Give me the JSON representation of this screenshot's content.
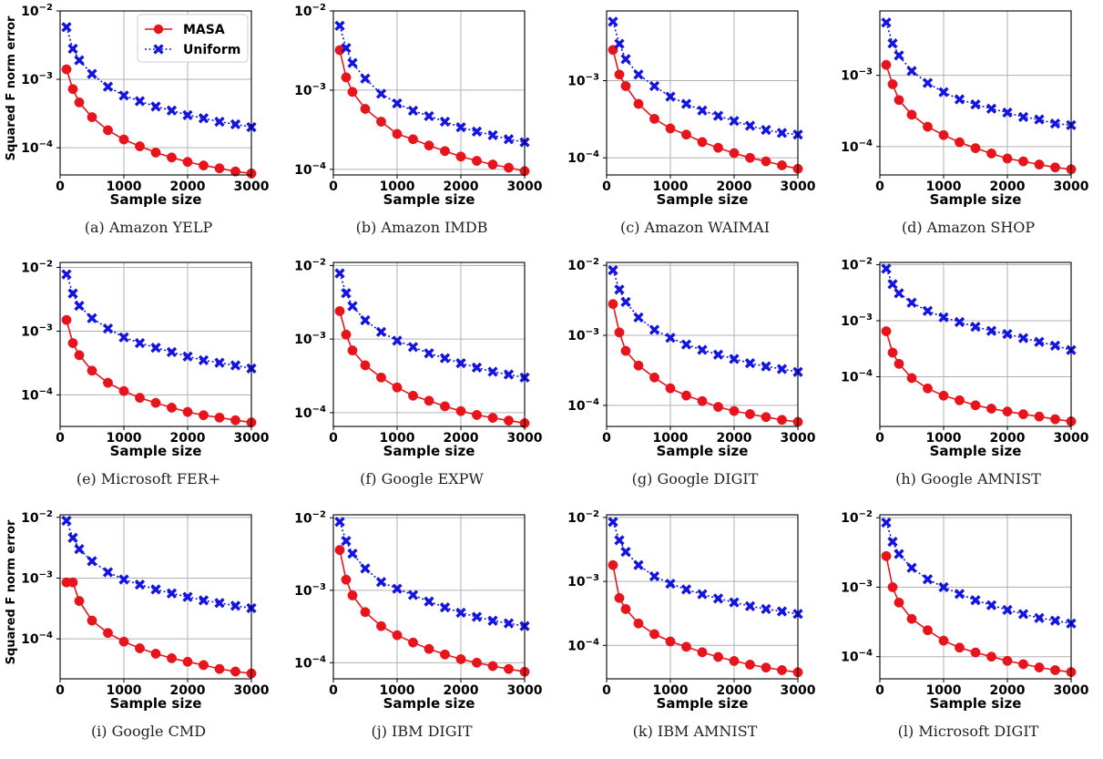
{
  "figure": {
    "ylabel": "Squared F norm error",
    "xlabel": "Sample size"
  },
  "legend": {
    "series": [
      "MASA",
      "Uniform"
    ],
    "position": "top-right of panel (a)"
  },
  "colors": {
    "masa": "#e8141c",
    "uniform": "#1414e0",
    "grid": "#b0b0b0"
  },
  "chart_data": [
    {
      "type": "line",
      "caption": "(a)  Amazon YELP",
      "xlabel": "Sample size",
      "ylabel": "Squared F norm error",
      "yscale": "log",
      "ylim": [
        4e-05,
        0.01
      ],
      "xlim": [
        0,
        3000
      ],
      "grid": true,
      "x": [
        100,
        200,
        300,
        500,
        750,
        1000,
        1250,
        1500,
        1750,
        2000,
        2250,
        2500,
        2750,
        3000
      ],
      "series": [
        {
          "name": "MASA",
          "values": [
            0.0014,
            0.00072,
            0.00046,
            0.00028,
            0.00018,
            0.000132,
            0.000105,
            8.5e-05,
            7.2e-05,
            6.2e-05,
            5.5e-05,
            5e-05,
            4.5e-05,
            4.2e-05
          ]
        },
        {
          "name": "Uniform",
          "values": [
            0.0058,
            0.0028,
            0.0019,
            0.0012,
            0.00078,
            0.00058,
            0.00048,
            0.0004,
            0.00035,
            0.0003,
            0.00027,
            0.00024,
            0.00022,
            0.0002
          ]
        }
      ]
    },
    {
      "type": "line",
      "caption": "(b)  Amazon IMDB",
      "xlabel": "Sample size",
      "yscale": "log",
      "ylim": [
        8.5e-05,
        0.01
      ],
      "xlim": [
        0,
        3000
      ],
      "grid": true,
      "x": [
        100,
        200,
        300,
        500,
        750,
        1000,
        1250,
        1500,
        1750,
        2000,
        2250,
        2500,
        2750,
        3000
      ],
      "series": [
        {
          "name": "MASA",
          "values": [
            0.0032,
            0.00145,
            0.00095,
            0.00058,
            0.0004,
            0.00028,
            0.00024,
            0.0002,
            0.00017,
            0.000145,
            0.000128,
            0.000115,
            0.000105,
            9.5e-05
          ]
        },
        {
          "name": "Uniform",
          "values": [
            0.0065,
            0.0034,
            0.0022,
            0.0014,
            0.0009,
            0.00068,
            0.00055,
            0.00047,
            0.0004,
            0.00034,
            0.0003,
            0.00027,
            0.00024,
            0.00022
          ]
        }
      ]
    },
    {
      "type": "line",
      "caption": "(c)  Amazon WAIMAI",
      "xlabel": "Sample size",
      "yscale": "log",
      "ylim": [
        6e-05,
        0.008
      ],
      "xlim": [
        0,
        3000
      ],
      "grid": true,
      "x": [
        100,
        200,
        300,
        500,
        750,
        1000,
        1250,
        1500,
        1750,
        2000,
        2250,
        2500,
        2750,
        3000
      ],
      "series": [
        {
          "name": "MASA",
          "values": [
            0.0025,
            0.0012,
            0.00085,
            0.0005,
            0.00032,
            0.00024,
            0.0002,
            0.00016,
            0.000135,
            0.000115,
            0.0001,
            9e-05,
            8e-05,
            7.2e-05
          ]
        },
        {
          "name": "Uniform",
          "values": [
            0.0058,
            0.003,
            0.0019,
            0.0012,
            0.00085,
            0.00062,
            0.0005,
            0.00041,
            0.00035,
            0.0003,
            0.00026,
            0.00023,
            0.00021,
            0.0002
          ]
        }
      ]
    },
    {
      "type": "line",
      "caption": "(d)  Amazon SHOP",
      "xlabel": "Sample size",
      "yscale": "log",
      "ylim": [
        4e-05,
        0.008
      ],
      "xlim": [
        0,
        3000
      ],
      "grid": true,
      "x": [
        100,
        200,
        300,
        500,
        750,
        1000,
        1250,
        1500,
        1750,
        2000,
        2250,
        2500,
        2750,
        3000
      ],
      "series": [
        {
          "name": "MASA",
          "values": [
            0.0014,
            0.00075,
            0.00045,
            0.00028,
            0.00019,
            0.000145,
            0.000115,
            9.5e-05,
            8e-05,
            6.8e-05,
            6.2e-05,
            5.6e-05,
            5.1e-05,
            4.8e-05
          ]
        },
        {
          "name": "Uniform",
          "values": [
            0.0055,
            0.0028,
            0.0019,
            0.00115,
            0.00078,
            0.00058,
            0.00046,
            0.00039,
            0.00034,
            0.0003,
            0.00026,
            0.00024,
            0.00021,
            0.0002
          ]
        }
      ]
    },
    {
      "type": "line",
      "caption": "(e)  Microsoft FER+",
      "xlabel": "Sample size",
      "yscale": "log",
      "ylim": [
        3.2e-05,
        0.012
      ],
      "xlim": [
        0,
        3000
      ],
      "grid": true,
      "x": [
        100,
        200,
        300,
        500,
        750,
        1000,
        1250,
        1500,
        1750,
        2000,
        2250,
        2500,
        2750,
        3000
      ],
      "series": [
        {
          "name": "MASA",
          "values": [
            0.0015,
            0.00065,
            0.00042,
            0.00024,
            0.000155,
            0.000115,
            9e-05,
            7.5e-05,
            6.3e-05,
            5.4e-05,
            4.8e-05,
            4.4e-05,
            4e-05,
            3.7e-05
          ]
        },
        {
          "name": "Uniform",
          "values": [
            0.0078,
            0.0039,
            0.0025,
            0.0016,
            0.0011,
            0.0008,
            0.00065,
            0.00055,
            0.00047,
            0.0004,
            0.00035,
            0.00032,
            0.00029,
            0.00026
          ]
        }
      ]
    },
    {
      "type": "line",
      "caption": "(f)  Google EXPW",
      "xlabel": "Sample size",
      "yscale": "log",
      "ylim": [
        6.5e-05,
        0.011
      ],
      "xlim": [
        0,
        3000
      ],
      "grid": true,
      "x": [
        100,
        200,
        300,
        500,
        750,
        1000,
        1250,
        1500,
        1750,
        2000,
        2250,
        2500,
        2750,
        3000
      ],
      "series": [
        {
          "name": "MASA",
          "values": [
            0.0024,
            0.00115,
            0.0007,
            0.00044,
            0.0003,
            0.00022,
            0.00017,
            0.000145,
            0.000122,
            0.000105,
            9.3e-05,
            8.5e-05,
            7.8e-05,
            7.2e-05
          ]
        },
        {
          "name": "Uniform",
          "values": [
            0.0078,
            0.0042,
            0.0028,
            0.0018,
            0.00125,
            0.00095,
            0.00078,
            0.00064,
            0.00055,
            0.00047,
            0.00041,
            0.00036,
            0.00033,
            0.0003
          ]
        }
      ]
    },
    {
      "type": "line",
      "caption": "(g)  Google DIGIT",
      "xlabel": "Sample size",
      "yscale": "log",
      "ylim": [
        5e-05,
        0.011
      ],
      "xlim": [
        0,
        3000
      ],
      "grid": true,
      "x": [
        100,
        200,
        300,
        500,
        750,
        1000,
        1250,
        1500,
        1750,
        2000,
        2250,
        2500,
        2750,
        3000
      ],
      "series": [
        {
          "name": "MASA",
          "values": [
            0.0028,
            0.0011,
            0.0006,
            0.00037,
            0.00025,
            0.000175,
            0.000138,
            0.000115,
            9.5e-05,
            8.3e-05,
            7.5e-05,
            6.8e-05,
            6.2e-05,
            5.8e-05
          ]
        },
        {
          "name": "Uniform",
          "values": [
            0.0085,
            0.0045,
            0.003,
            0.0018,
            0.0012,
            0.00092,
            0.00074,
            0.00062,
            0.00053,
            0.00046,
            0.0004,
            0.00036,
            0.00033,
            0.0003
          ]
        }
      ]
    },
    {
      "type": "line",
      "caption": "(h)  Google AMNIST",
      "xlabel": "Sample size",
      "yscale": "log",
      "ylim": [
        1.3e-05,
        0.011
      ],
      "xlim": [
        0,
        3000
      ],
      "grid": true,
      "x": [
        100,
        200,
        300,
        500,
        750,
        1000,
        1250,
        1500,
        1750,
        2000,
        2250,
        2500,
        2750,
        3000
      ],
      "series": [
        {
          "name": "MASA",
          "values": [
            0.00065,
            0.00027,
            0.00017,
            9.5e-05,
            6.2e-05,
            4.6e-05,
            3.8e-05,
            3.1e-05,
            2.7e-05,
            2.4e-05,
            2.15e-05,
            1.95e-05,
            1.75e-05,
            1.6e-05
          ]
        },
        {
          "name": "Uniform",
          "values": [
            0.0085,
            0.0045,
            0.0031,
            0.0021,
            0.0015,
            0.00115,
            0.00095,
            0.00078,
            0.00066,
            0.00058,
            0.00049,
            0.00042,
            0.00036,
            0.0003
          ]
        }
      ]
    },
    {
      "type": "line",
      "caption": "(i)  Google CMD",
      "xlabel": "Sample size",
      "ylabel": "Squared F norm error",
      "yscale": "log",
      "ylim": [
        2.2e-05,
        0.011
      ],
      "xlim": [
        0,
        3000
      ],
      "grid": true,
      "x": [
        100,
        200,
        300,
        500,
        750,
        1000,
        1250,
        1500,
        1750,
        2000,
        2250,
        2500,
        2750,
        3000
      ],
      "series": [
        {
          "name": "MASA",
          "values": [
            0.00085,
            0.00085,
            0.00042,
            0.0002,
            0.000125,
            9e-05,
            7e-05,
            5.7e-05,
            4.8e-05,
            4.2e-05,
            3.7e-05,
            3.2e-05,
            2.9e-05,
            2.7e-05
          ]
        },
        {
          "name": "Uniform",
          "values": [
            0.0088,
            0.0046,
            0.003,
            0.0019,
            0.00125,
            0.00095,
            0.00078,
            0.00065,
            0.00056,
            0.00049,
            0.00043,
            0.00039,
            0.00035,
            0.00032
          ]
        }
      ]
    },
    {
      "type": "line",
      "caption": "(j)  IBM DIGIT",
      "xlabel": "Sample size",
      "yscale": "log",
      "ylim": [
        6e-05,
        0.011
      ],
      "xlim": [
        0,
        3000
      ],
      "grid": true,
      "x": [
        100,
        200,
        300,
        500,
        750,
        1000,
        1250,
        1500,
        1750,
        2000,
        2250,
        2500,
        2750,
        3000
      ],
      "series": [
        {
          "name": "MASA",
          "values": [
            0.0036,
            0.0014,
            0.00085,
            0.0005,
            0.00032,
            0.00024,
            0.00019,
            0.000155,
            0.00013,
            0.000112,
            0.0001,
            9e-05,
            8.2e-05,
            7.5e-05
          ]
        },
        {
          "name": "Uniform",
          "values": [
            0.0088,
            0.0048,
            0.0032,
            0.002,
            0.0013,
            0.00105,
            0.00086,
            0.0007,
            0.00058,
            0.00049,
            0.00043,
            0.00038,
            0.00035,
            0.00032
          ]
        }
      ]
    },
    {
      "type": "line",
      "caption": "(k)  IBM AMNIST",
      "xlabel": "Sample size",
      "yscale": "log",
      "ylim": [
        3e-05,
        0.011
      ],
      "xlim": [
        0,
        3000
      ],
      "grid": true,
      "x": [
        100,
        200,
        300,
        500,
        750,
        1000,
        1250,
        1500,
        1750,
        2000,
        2250,
        2500,
        2750,
        3000
      ],
      "series": [
        {
          "name": "MASA",
          "values": [
            0.0018,
            0.00055,
            0.00037,
            0.00022,
            0.00015,
            0.000115,
            9.5e-05,
            7.8e-05,
            6.6e-05,
            5.7e-05,
            5e-05,
            4.5e-05,
            4.1e-05,
            3.8e-05
          ]
        },
        {
          "name": "Uniform",
          "values": [
            0.0085,
            0.0044,
            0.0029,
            0.0018,
            0.0012,
            0.00092,
            0.00075,
            0.00063,
            0.00054,
            0.00047,
            0.00041,
            0.00037,
            0.00034,
            0.00031
          ]
        }
      ]
    },
    {
      "type": "line",
      "caption": "(l)  Microsoft DIGIT",
      "xlabel": "Sample size",
      "yscale": "log",
      "ylim": [
        4.8e-05,
        0.011
      ],
      "xlim": [
        0,
        3000
      ],
      "grid": true,
      "x": [
        100,
        200,
        300,
        500,
        750,
        1000,
        1250,
        1500,
        1750,
        2000,
        2250,
        2500,
        2750,
        3000
      ],
      "series": [
        {
          "name": "MASA",
          "values": [
            0.0028,
            0.001,
            0.0006,
            0.00035,
            0.00024,
            0.00017,
            0.000135,
            0.000115,
            0.0001,
            8.7e-05,
            7.8e-05,
            7e-05,
            6.4e-05,
            6e-05
          ]
        },
        {
          "name": "Uniform",
          "values": [
            0.0085,
            0.0045,
            0.003,
            0.0019,
            0.0013,
            0.001,
            0.0008,
            0.00065,
            0.00055,
            0.00047,
            0.00041,
            0.00036,
            0.00033,
            0.0003
          ]
        }
      ]
    }
  ]
}
